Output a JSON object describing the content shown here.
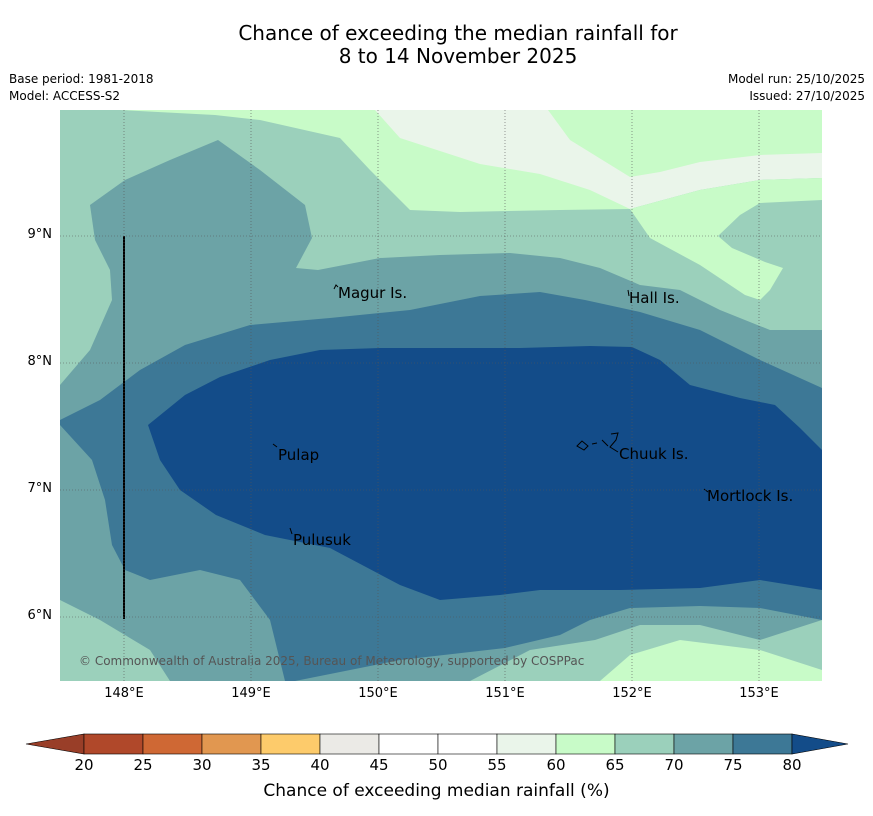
{
  "title_line1": "Chance of exceeding the median rainfall for",
  "title_line2": "8 to 14 November 2025",
  "base_period": "Base period: 1981-2018",
  "model": "Model: ACCESS-S2",
  "model_run": "Model run: 25/10/2025",
  "issued": "Issued: 27/10/2025",
  "x_ticks": [
    "148°E",
    "149°E",
    "150°E",
    "151°E",
    "152°E",
    "153°E"
  ],
  "y_ticks": [
    "9°N",
    "8°N",
    "7°N",
    "6°N"
  ],
  "places": {
    "magur": "Magur Is.",
    "hall": "Hall Is.",
    "pulap": "Pulap",
    "chuuk": "Chuuk Is.",
    "mortlock": "Mortlock Is.",
    "pulusuk": "Pulusuk"
  },
  "copyright": "© Commonwealth of Australia 2025, Bureau of Meteorology, supported by COSPPac",
  "colorbar": {
    "title": "Chance of exceeding median rainfall (%)",
    "labels": [
      "20",
      "25",
      "30",
      "35",
      "40",
      "45",
      "50",
      "55",
      "60",
      "65",
      "70",
      "75",
      "80"
    ],
    "colors": [
      "#b0482a",
      "#cf6834",
      "#e19750",
      "#fdcb6b",
      "#ebeae6",
      "#ffffff",
      "#ffffff",
      "#eaf5ea",
      "#c8fbc8",
      "#9bd0bb",
      "#6ca3a6",
      "#3d7896"
    ],
    "under_color": "#993e28",
    "over_color": "#134c89"
  },
  "map_data": {
    "lon_range": [
      147.5,
      153.5
    ],
    "lat_range": [
      5.5,
      10.0
    ],
    "bands": [
      {
        "level": "60-65",
        "color": "#c8fbc8"
      },
      {
        "level": "55-60",
        "color": "#eaf5ea"
      },
      {
        "level": "65-70",
        "color": "#9bd0bb"
      },
      {
        "level": "70-75",
        "color": "#6ca3a6"
      },
      {
        "level": "75-80",
        "color": "#3d7896"
      },
      {
        "level": ">80",
        "color": "#134c89"
      }
    ]
  }
}
